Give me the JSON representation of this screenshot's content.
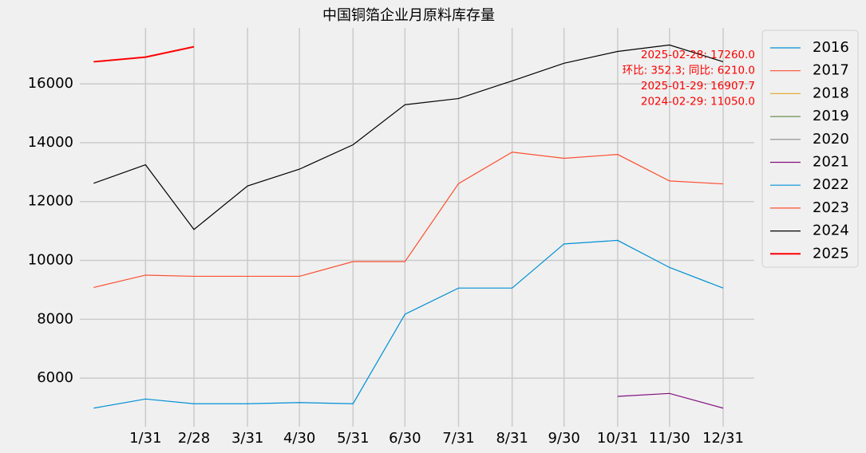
{
  "chart_data": {
    "type": "line",
    "title": "中国铜箔企业月原料库存量",
    "x": [
      1,
      31,
      59,
      90,
      120,
      151,
      181,
      212,
      243,
      273,
      304,
      334,
      365
    ],
    "xlim": [
      -7,
      383
    ],
    "xticks": [
      {
        "value": 31,
        "label": "1/31"
      },
      {
        "value": 59,
        "label": "2/28"
      },
      {
        "value": 90,
        "label": "3/31"
      },
      {
        "value": 120,
        "label": "4/30"
      },
      {
        "value": 151,
        "label": "5/31"
      },
      {
        "value": 181,
        "label": "6/30"
      },
      {
        "value": 212,
        "label": "7/31"
      },
      {
        "value": 243,
        "label": "8/31"
      },
      {
        "value": 273,
        "label": "9/30"
      },
      {
        "value": 304,
        "label": "10/31"
      },
      {
        "value": 334,
        "label": "11/30"
      },
      {
        "value": 365,
        "label": "12/31"
      }
    ],
    "ylim": [
      4350,
      17900
    ],
    "yticks": [
      6000,
      8000,
      10000,
      12000,
      14000,
      16000
    ],
    "grid": true,
    "legend": "outside-right",
    "series": [
      {
        "name": "2016",
        "color": "#008fd5",
        "values": [
          null,
          null,
          null,
          null,
          null,
          null,
          null,
          null,
          null,
          null,
          null,
          null,
          null
        ]
      },
      {
        "name": "2017",
        "color": "#fc4f30",
        "values": [
          null,
          null,
          null,
          null,
          null,
          null,
          null,
          null,
          null,
          null,
          null,
          null,
          null
        ]
      },
      {
        "name": "2018",
        "color": "#e5ae38",
        "values": [
          null,
          null,
          null,
          null,
          null,
          null,
          null,
          null,
          null,
          null,
          null,
          null,
          null
        ]
      },
      {
        "name": "2019",
        "color": "#6d904f",
        "values": [
          null,
          null,
          null,
          null,
          null,
          null,
          null,
          null,
          null,
          null,
          null,
          null,
          null
        ]
      },
      {
        "name": "2020",
        "color": "#8b8b8b",
        "values": [
          null,
          null,
          null,
          null,
          null,
          null,
          null,
          null,
          null,
          null,
          null,
          null,
          null
        ]
      },
      {
        "name": "2021",
        "color": "#810f7c",
        "values": [
          null,
          null,
          null,
          null,
          null,
          null,
          null,
          null,
          null,
          null,
          5380,
          5480,
          4980
        ]
      },
      {
        "name": "2022",
        "color": "#008fd5",
        "values": [
          4980,
          5290,
          5130,
          5130,
          5170,
          5130,
          8170,
          9060,
          9060,
          10560,
          10680,
          9760,
          9060
        ]
      },
      {
        "name": "2023",
        "color": "#fc4f30",
        "values": [
          9080,
          9500,
          9460,
          9460,
          9460,
          9960,
          9960,
          12610,
          13680,
          13470,
          13600,
          12700,
          12600
        ]
      },
      {
        "name": "2024",
        "color": "#000000",
        "values": [
          12620,
          13250,
          11050,
          12530,
          13100,
          13930,
          15290,
          15500,
          16100,
          16700,
          17100,
          17320,
          16750
        ]
      },
      {
        "name": "2025",
        "color": "#ff0000",
        "values": [
          16750,
          16907.7,
          17260,
          null,
          null,
          null,
          null,
          null,
          null,
          null,
          null,
          null,
          null
        ]
      }
    ],
    "annotations": [
      "2025-02-28: 17260.0",
      "环比: 352.3; 同比: 6210.0",
      "2025-01-29: 16907.7",
      "2024-02-29: 11050.0"
    ],
    "annotation_color": "#ff0000"
  }
}
